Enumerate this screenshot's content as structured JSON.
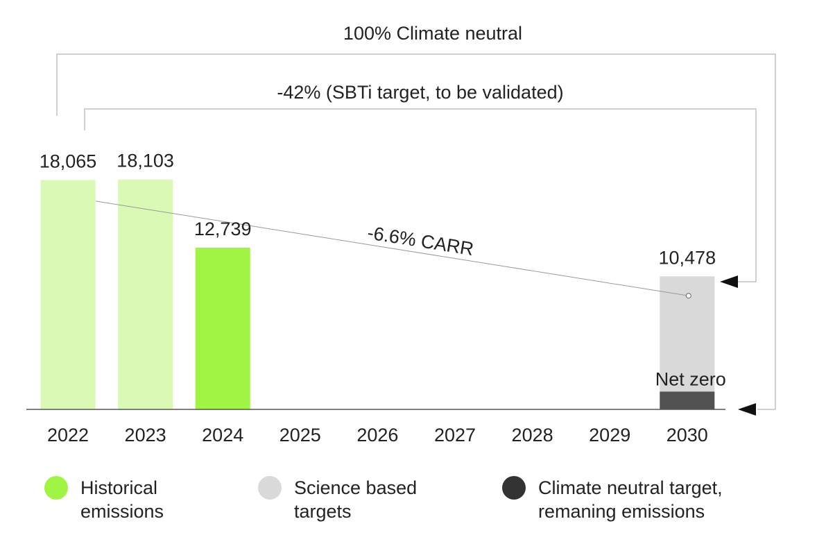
{
  "chart_data": {
    "type": "bar",
    "categories": [
      "2022",
      "2023",
      "2024",
      "2025",
      "2026",
      "2027",
      "2028",
      "2029",
      "2030"
    ],
    "series": [
      {
        "name": "Historical emissions",
        "values": [
          18065,
          18103,
          12739,
          null,
          null,
          null,
          null,
          null,
          null
        ]
      },
      {
        "name": "Science based targets",
        "values": [
          null,
          null,
          null,
          null,
          null,
          null,
          null,
          null,
          10478
        ]
      },
      {
        "name": "Climate neutral target, remaning emissions",
        "values": [
          null,
          null,
          null,
          null,
          null,
          null,
          null,
          null,
          1400
        ]
      }
    ],
    "data_labels": [
      "18,065",
      "18,103",
      "12,739",
      "",
      "",
      "",
      "",
      "",
      "10,478"
    ],
    "net_zero_label": "Net zero",
    "trend": {
      "label": "-6.6% CARR",
      "from": "2022",
      "to": "2030",
      "start_value": 16400,
      "end_value": 8950
    },
    "annotations": [
      {
        "text": "100% Climate neutral"
      },
      {
        "text": "-42% (SBTi target, to be validated)"
      }
    ],
    "ylim": [
      0,
      20000
    ],
    "grid": false,
    "legend_position": "bottom",
    "colors": {
      "historical_faded": "#d9f9b4",
      "historical_current": "#a0f443",
      "science_based": "#d9d9d9",
      "climate_neutral": "#525252",
      "legend_dark": "#333333",
      "axis": "#555555",
      "bracket": "#c2c2c2",
      "trend": "#999999"
    }
  },
  "legend": [
    {
      "label": "Historical\nemissions",
      "color": "#a0f443"
    },
    {
      "label": "Science based\ntargets",
      "color": "#d9d9d9"
    },
    {
      "label": "Climate neutral target,\nremaning emissions",
      "color": "#333333"
    }
  ]
}
